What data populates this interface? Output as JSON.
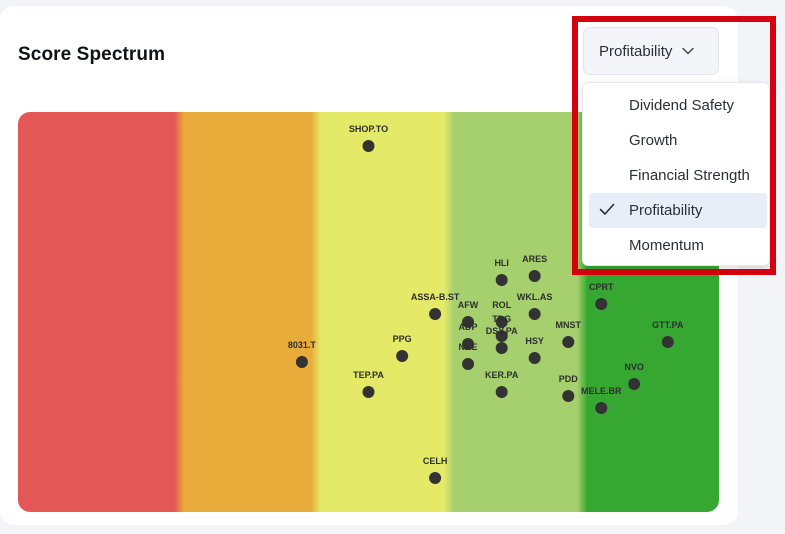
{
  "card": {
    "title": "Score Spectrum"
  },
  "dropdown": {
    "selected_label": "Profitability",
    "options": [
      {
        "label": "Dividend Safety",
        "selected": false
      },
      {
        "label": "Growth",
        "selected": false
      },
      {
        "label": "Financial Strength",
        "selected": false
      },
      {
        "label": "Profitability",
        "selected": true
      },
      {
        "label": "Momentum",
        "selected": false
      }
    ]
  },
  "colors": {
    "band_very_low": "#e45757",
    "band_low": "#e9ac3a",
    "band_mid": "#e4e968",
    "band_high": "#a6d06d",
    "band_very_high": "#36a832",
    "point": "#333333",
    "highlight": "#d4000f"
  },
  "chart_data": {
    "type": "scatter",
    "title": "",
    "xlabel": "",
    "ylabel": "",
    "xlim": [
      0,
      100
    ],
    "ylim": [
      0,
      100
    ],
    "bands": [
      {
        "from": 0,
        "to": 23,
        "color": "#e45757"
      },
      {
        "from": 23,
        "to": 42.5,
        "color": "#e9ac3a"
      },
      {
        "from": 42.5,
        "to": 61.5,
        "color": "#e4e968"
      },
      {
        "from": 61.5,
        "to": 80.5,
        "color": "#a6d06d"
      },
      {
        "from": 80.5,
        "to": 100,
        "color": "#36a832"
      }
    ],
    "points": [
      {
        "label": "SHOP.TO",
        "x": 50,
        "y": 91.5
      },
      {
        "label": "HLI",
        "x": 69,
        "y": 58
      },
      {
        "label": "ARES",
        "x": 73.7,
        "y": 59
      },
      {
        "label": "CPRT",
        "x": 83.2,
        "y": 52
      },
      {
        "label": "ASSA-B.ST",
        "x": 59.5,
        "y": 49.5
      },
      {
        "label": "WKL.AS",
        "x": 73.7,
        "y": 49.5
      },
      {
        "label": "AFW",
        "x": 64.2,
        "y": 47.5
      },
      {
        "label": "ROL",
        "x": 69,
        "y": 47.5
      },
      {
        "label": "ADP",
        "x": 64.2,
        "y": 42
      },
      {
        "label": "TDG",
        "x": 69,
        "y": 44
      },
      {
        "label": "DSY.PA",
        "x": 69,
        "y": 41
      },
      {
        "label": "MNST",
        "x": 78.5,
        "y": 42.5
      },
      {
        "label": "GTT.PA",
        "x": 92.7,
        "y": 42.5
      },
      {
        "label": "8031.T",
        "x": 40.5,
        "y": 37.5
      },
      {
        "label": "PPG",
        "x": 54.8,
        "y": 39
      },
      {
        "label": "NKE",
        "x": 64.2,
        "y": 37
      },
      {
        "label": "HSY",
        "x": 73.7,
        "y": 38.5
      },
      {
        "label": "TEP.PA",
        "x": 50,
        "y": 30
      },
      {
        "label": "KER.PA",
        "x": 69,
        "y": 30
      },
      {
        "label": "PDD",
        "x": 78.5,
        "y": 29
      },
      {
        "label": "NVO",
        "x": 87.9,
        "y": 32
      },
      {
        "label": "MELE.BR",
        "x": 83.2,
        "y": 26
      },
      {
        "label": "CELH",
        "x": 59.5,
        "y": 8.5
      }
    ]
  }
}
